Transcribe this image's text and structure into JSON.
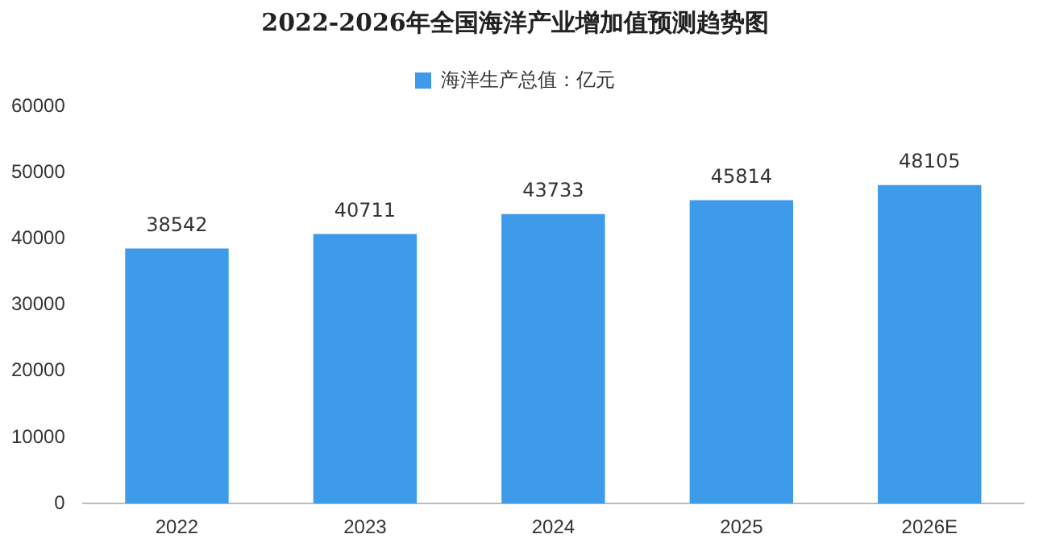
{
  "chart_data": {
    "type": "bar",
    "title": "2022-2026年全国海洋产业增加值预测趋势图",
    "categories": [
      "2022",
      "2023",
      "2024",
      "2025",
      "2026E"
    ],
    "series": [
      {
        "name": "海洋生产总值：亿元",
        "color": "#3d9be9",
        "values": [
          38542,
          40711,
          43733,
          45814,
          48105
        ]
      }
    ],
    "ylim": [
      0,
      60000
    ],
    "yticks": [
      0,
      10000,
      20000,
      30000,
      40000,
      50000,
      60000
    ],
    "grid": false,
    "legend": "top",
    "data_labels": true
  }
}
